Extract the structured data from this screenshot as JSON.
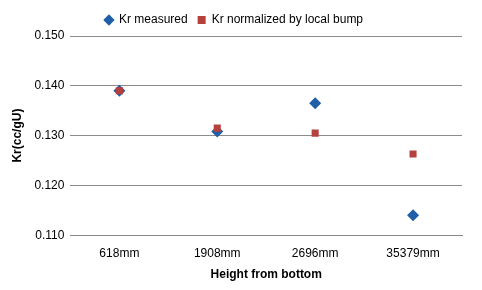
{
  "chart_data": {
    "type": "scatter",
    "x_label": "Height from bottom",
    "y_label": "Kr(cc/gU)",
    "categories": [
      "618mm",
      "1908mm",
      "2696mm",
      "35379mm"
    ],
    "series": [
      {
        "name": "Kr measured",
        "color": "#1f5fa8",
        "marker": "diamond",
        "values": [
          0.139,
          0.1308,
          0.1365,
          0.114
        ]
      },
      {
        "name": "Kr normalized by local bump",
        "color": "#b5403c",
        "marker": "square",
        "values": [
          0.139,
          0.1315,
          0.1305,
          0.1263
        ]
      }
    ],
    "ylim": [
      0.11,
      0.15
    ],
    "yticks": [
      {
        "value": 0.11,
        "label": "0.110"
      },
      {
        "value": 0.12,
        "label": "0.120"
      },
      {
        "value": 0.13,
        "label": "0.130"
      },
      {
        "value": 0.14,
        "label": "0.140"
      },
      {
        "value": 0.15,
        "label": "0.150"
      }
    ],
    "grid": true,
    "legend": "top"
  }
}
